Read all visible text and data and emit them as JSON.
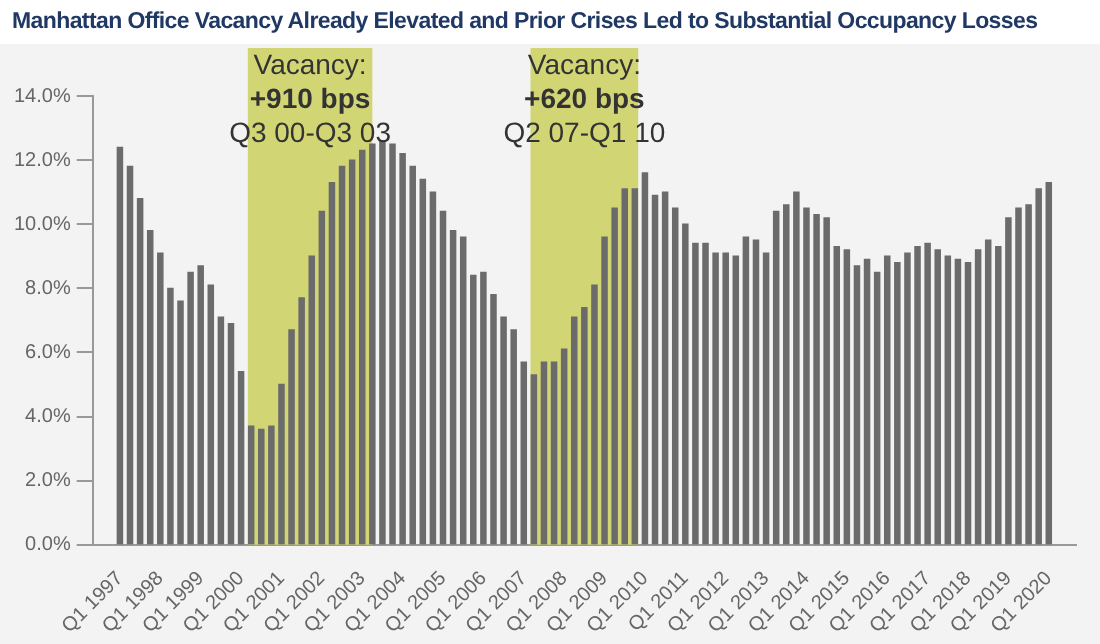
{
  "chart_data": {
    "type": "bar",
    "title": "Manhattan Office Vacancy Already Elevated and Prior Crises Led to Substantial Occupancy Losses",
    "x": [
      "1997-01",
      "1997-04",
      "1997-07",
      "1997-10",
      "1998-01",
      "1998-04",
      "1998-07",
      "1998-10",
      "1999-01",
      "1999-04",
      "1999-07",
      "1999-10",
      "2000-01",
      "2000-04",
      "2000-07",
      "2000-10",
      "2001-01",
      "2001-04",
      "2001-07",
      "2001-10",
      "2002-01",
      "2002-04",
      "2002-07",
      "2002-10",
      "2003-01",
      "2003-04",
      "2003-07",
      "2003-10",
      "2004-01",
      "2004-04",
      "2004-07",
      "2004-10",
      "2005-01",
      "2005-04",
      "2005-07",
      "2005-10",
      "2006-01",
      "2006-04",
      "2006-07",
      "2006-10",
      "2007-01",
      "2007-04",
      "2007-07",
      "2007-10",
      "2008-01",
      "2008-04",
      "2008-07",
      "2008-10",
      "2009-01",
      "2009-04",
      "2009-07",
      "2009-10",
      "2010-01",
      "2010-04",
      "2010-07",
      "2010-10",
      "2011-01",
      "2011-04",
      "2011-07",
      "2011-10",
      "2012-01",
      "2012-04",
      "2012-07",
      "2012-10",
      "2013-01",
      "2013-04",
      "2013-07",
      "2013-10",
      "2014-01",
      "2014-04",
      "2014-07",
      "2014-10",
      "2015-01",
      "2015-04",
      "2015-07",
      "2015-10",
      "2016-01",
      "2016-04",
      "2016-07",
      "2016-10",
      "2017-01",
      "2017-04",
      "2017-07",
      "2017-10",
      "2018-01",
      "2018-04",
      "2018-07",
      "2018-10",
      "2019-01",
      "2019-04",
      "2019-07",
      "2019-10",
      "2020-01"
    ],
    "values": [
      12.4,
      11.8,
      10.8,
      9.8,
      9.1,
      8.0,
      7.6,
      8.5,
      8.7,
      8.1,
      7.1,
      6.9,
      5.4,
      3.7,
      3.6,
      3.7,
      5.0,
      6.7,
      7.7,
      9.0,
      10.4,
      11.3,
      11.8,
      12.0,
      12.3,
      12.5,
      12.6,
      12.5,
      12.2,
      11.8,
      11.4,
      11.0,
      10.4,
      9.8,
      9.6,
      8.4,
      8.5,
      7.8,
      7.1,
      6.7,
      5.7,
      5.3,
      5.7,
      5.7,
      6.1,
      7.1,
      7.4,
      8.1,
      9.6,
      10.5,
      11.1,
      11.1,
      11.6,
      10.9,
      11.0,
      10.5,
      10.0,
      9.4,
      9.4,
      9.1,
      9.1,
      9.0,
      9.6,
      9.5,
      9.1,
      10.4,
      10.6,
      11.0,
      10.5,
      10.3,
      10.2,
      9.3,
      9.2,
      8.7,
      8.9,
      8.5,
      9.0,
      8.8,
      9.1,
      9.3,
      9.4,
      9.2,
      9.0,
      8.9,
      8.8,
      9.2,
      9.5,
      9.3,
      10.2,
      10.5,
      10.6,
      11.1,
      11.3
    ],
    "color": "#6b6b6b",
    "xlim": [
      "1996-11",
      "2020-03"
    ],
    "xticks": [
      {
        "value": "1997-01",
        "label": "Q1 1997"
      },
      {
        "value": "1998-01",
        "label": "Q1 1998"
      },
      {
        "value": "1999-01",
        "label": "Q1 1999"
      },
      {
        "value": "2000-01",
        "label": "Q1 2000"
      },
      {
        "value": "2001-01",
        "label": "Q1 2001"
      },
      {
        "value": "2002-01",
        "label": "Q1 2002"
      },
      {
        "value": "2003-01",
        "label": "Q1 2003"
      },
      {
        "value": "2004-01",
        "label": "Q1 2004"
      },
      {
        "value": "2005-01",
        "label": "Q1 2005"
      },
      {
        "value": "2006-01",
        "label": "Q1 2006"
      },
      {
        "value": "2007-01",
        "label": "Q1 2007"
      },
      {
        "value": "2008-01",
        "label": "Q1 2008"
      },
      {
        "value": "2009-01",
        "label": "Q1 2009"
      },
      {
        "value": "2010-01",
        "label": "Q1 2010"
      },
      {
        "value": "2011-01",
        "label": "Q1 2011"
      },
      {
        "value": "2012-01",
        "label": "Q1 2012"
      },
      {
        "value": "2013-01",
        "label": "Q1 2013"
      },
      {
        "value": "2014-01",
        "label": "Q1 2014"
      },
      {
        "value": "2015-01",
        "label": "Q1 2015"
      },
      {
        "value": "2016-01",
        "label": "Q1 2016"
      },
      {
        "value": "2017-01",
        "label": "Q1 2017"
      },
      {
        "value": "2018-01",
        "label": "Q1 2018"
      },
      {
        "value": "2019-01",
        "label": "Q1 2019"
      },
      {
        "value": "2020-01",
        "label": "Q1 2020"
      }
    ],
    "ylim": [
      0,
      14
    ],
    "yticks": [
      {
        "value": 0,
        "label": "0.0%"
      },
      {
        "value": 2,
        "label": "2.0%"
      },
      {
        "value": 4,
        "label": "4.0%"
      },
      {
        "value": 6,
        "label": "6.0%"
      },
      {
        "value": 8,
        "label": "8.0%"
      },
      {
        "value": 10,
        "label": "10.0%"
      },
      {
        "value": 12,
        "label": "12.0%"
      },
      {
        "value": 14,
        "label": "14.0%"
      }
    ],
    "bands": [
      {
        "axis": "x",
        "from": "2000-03",
        "to": "2003-04",
        "label": "Vacancy:\n+910 bps\nQ3 00-Q3 03",
        "color": "#d2d574"
      },
      {
        "axis": "x",
        "from": "2007-03",
        "to": "2009-11",
        "label": "Vacancy:\n+620 bps\nQ2 07-Q1 10",
        "color": "#d2d574"
      }
    ],
    "grid": false,
    "legend": false
  }
}
